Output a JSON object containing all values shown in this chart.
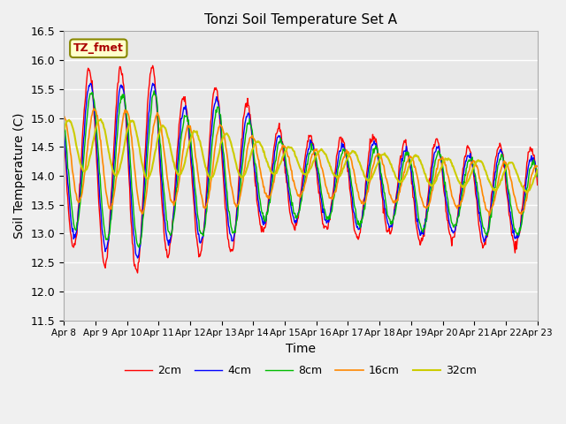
{
  "title": "Tonzi Soil Temperature Set A",
  "xlabel": "Time",
  "ylabel": "Soil Temperature (C)",
  "ylim": [
    11.5,
    16.5
  ],
  "annotation": "TZ_fmet",
  "colors": {
    "2cm": "#ff0000",
    "4cm": "#0000ff",
    "8cm": "#00bb00",
    "16cm": "#ff8800",
    "32cm": "#cccc00"
  },
  "legend_labels": [
    "2cm",
    "4cm",
    "8cm",
    "16cm",
    "32cm"
  ],
  "fig_bg_color": "#f0f0f0",
  "plot_bg_color": "#e8e8e8",
  "x_tick_labels": [
    "Apr 8",
    "Apr 9",
    "Apr 10",
    "Apr 11",
    "Apr 12",
    "Apr 13",
    "Apr 14",
    "Apr 15",
    "Apr 16",
    "Apr 17",
    "Apr 18",
    "Apr 19",
    "Apr 20",
    "Apr 21",
    "Apr 22",
    "Apr 23"
  ],
  "num_days": 15,
  "pts_per_day": 48
}
